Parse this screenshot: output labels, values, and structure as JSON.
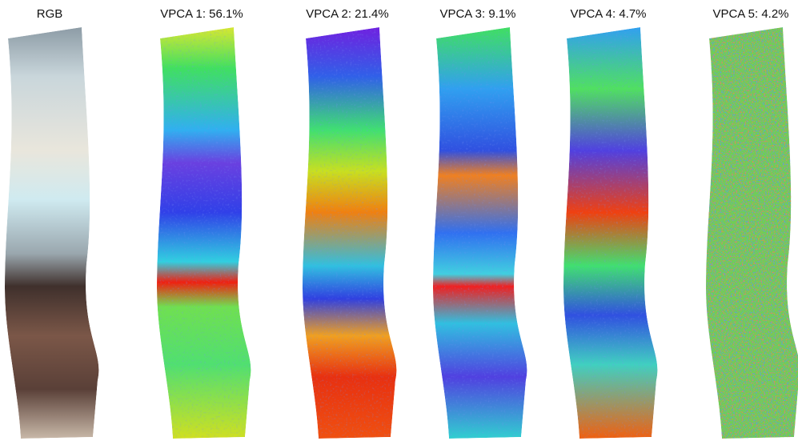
{
  "panels": [
    {
      "label": "RGB"
    },
    {
      "label": "VPCA 1: 56.1%"
    },
    {
      "label": "VPCA 2: 21.4%"
    },
    {
      "label": "VPCA 3: 9.1%"
    },
    {
      "label": "VPCA 4: 4.7%"
    },
    {
      "label": "VPCA 5: 4.2%"
    }
  ]
}
